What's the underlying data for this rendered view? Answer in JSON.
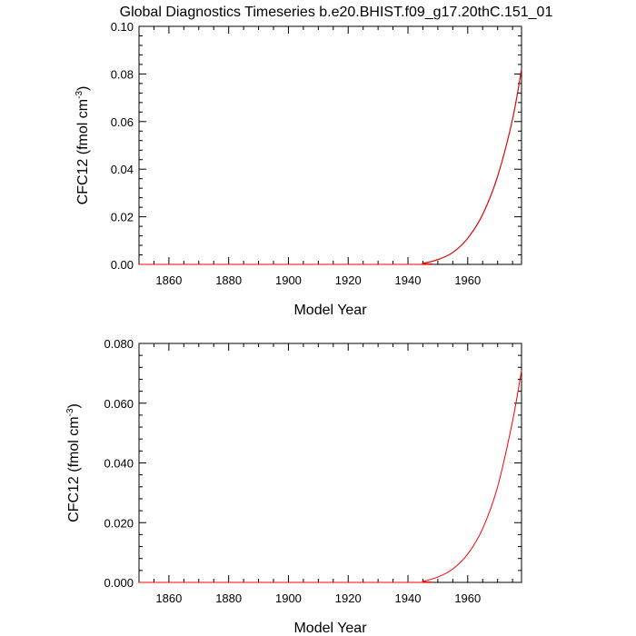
{
  "page_title": "Global Diagnostics Timeseries b.e20.BHIST.f09_g17.20thC.151_01",
  "chart_data": [
    {
      "type": "line",
      "title": "Global Diagnostics Timeseries b.e20.BHIST.f09_g17.20thC.151_01",
      "xlabel": "Model Year",
      "ylabel": "CFC12 (fmol cm^-3)",
      "ylabel_main": "CFC12 (fmol cm",
      "ylabel_sup": "-3",
      "ylabel_close": ")",
      "xlim": [
        1850,
        1978
      ],
      "ylim": [
        0,
        0.1
      ],
      "x_ticks": [
        "1860",
        "1880",
        "1900",
        "1920",
        "1940",
        "1960"
      ],
      "x_tick_values": [
        1860,
        1880,
        1900,
        1920,
        1940,
        1960
      ],
      "y_ticks": [
        "0.00",
        "0.02",
        "0.04",
        "0.06",
        "0.08",
        "0.10"
      ],
      "y_tick_values": [
        0,
        0.02,
        0.04,
        0.06,
        0.08,
        0.1
      ],
      "series": [
        {
          "color": "#000000",
          "x": [
            1850,
            1940,
            1945,
            1950,
            1955,
            1960,
            1965,
            1970,
            1975,
            1978
          ],
          "y": [
            0,
            0,
            0.0005,
            0.002,
            0.005,
            0.011,
            0.021,
            0.037,
            0.061,
            0.082
          ]
        },
        {
          "color": "#ff0000",
          "x": [
            1850,
            1940,
            1945,
            1950,
            1955,
            1960,
            1965,
            1970,
            1975,
            1978
          ],
          "y": [
            0,
            0,
            0.0005,
            0.002,
            0.005,
            0.011,
            0.021,
            0.037,
            0.061,
            0.082
          ]
        }
      ]
    },
    {
      "type": "line",
      "title": "",
      "xlabel": "Model Year",
      "ylabel": "CFC12 (fmol cm^-3)",
      "ylabel_main": "CFC12 (fmol cm",
      "ylabel_sup": "-3",
      "ylabel_close": ")",
      "xlim": [
        1850,
        1978
      ],
      "ylim": [
        0,
        0.08
      ],
      "x_ticks": [
        "1860",
        "1880",
        "1900",
        "1920",
        "1940",
        "1960"
      ],
      "x_tick_values": [
        1860,
        1880,
        1900,
        1920,
        1940,
        1960
      ],
      "y_ticks": [
        "0.000",
        "0.020",
        "0.040",
        "0.060",
        "0.080"
      ],
      "y_tick_values": [
        0,
        0.02,
        0.04,
        0.06,
        0.08
      ],
      "series": [
        {
          "color": "#ff0000",
          "x": [
            1850,
            1940,
            1945,
            1950,
            1955,
            1960,
            1965,
            1970,
            1975,
            1978
          ],
          "y": [
            0,
            0,
            0.0004,
            0.0018,
            0.0045,
            0.0095,
            0.018,
            0.032,
            0.054,
            0.071
          ]
        }
      ]
    }
  ]
}
